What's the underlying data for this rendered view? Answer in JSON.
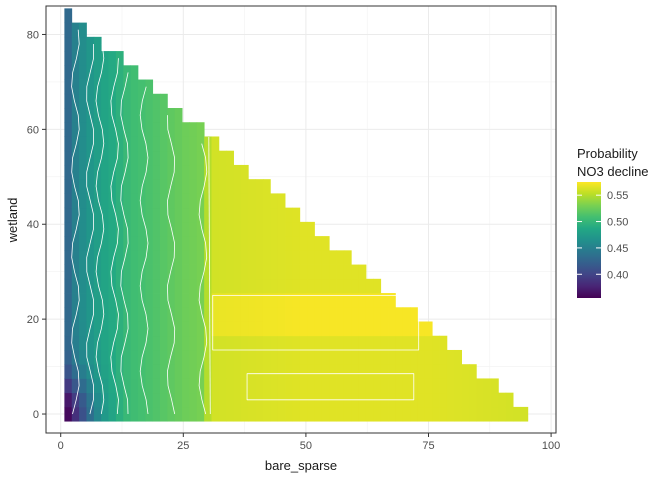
{
  "chart_data": {
    "type": "heatmap",
    "title": "",
    "xlabel": "bare_sparse",
    "ylabel": "wetland",
    "xlim": [
      -3,
      101
    ],
    "ylim": [
      -4,
      86
    ],
    "x_ticks": [
      0,
      25,
      50,
      75,
      100
    ],
    "y_ticks": [
      0,
      20,
      40,
      60,
      80
    ],
    "x_tick_labels": [
      "0",
      "25",
      "50",
      "75",
      "100"
    ],
    "y_tick_labels": [
      "0",
      "20",
      "40",
      "60",
      "80"
    ],
    "grid": true,
    "cell_width": 1.5,
    "cell_height": 3,
    "x_min": 1.5,
    "x_max": 96,
    "wetland_max_at_bare_min": 84.5,
    "hypotenuse_slope": -0.9,
    "legend": {
      "title_line1": "Probability",
      "title_line2": "NO3 decline",
      "placement": "right",
      "range": [
        0.355,
        0.575
      ],
      "breaks": [
        0.4,
        0.45,
        0.5,
        0.55
      ],
      "break_labels": [
        "0.40",
        "0.45",
        "0.50",
        "0.55"
      ]
    },
    "colormap": "viridis",
    "probability_by_bare_sparse": [
      {
        "x": 1.5,
        "p": 0.43
      },
      {
        "x": 3,
        "p": 0.45
      },
      {
        "x": 5,
        "p": 0.465
      },
      {
        "x": 8,
        "p": 0.48
      },
      {
        "x": 11,
        "p": 0.49
      },
      {
        "x": 14,
        "p": 0.505
      },
      {
        "x": 17,
        "p": 0.51
      },
      {
        "x": 20,
        "p": 0.515
      },
      {
        "x": 25,
        "p": 0.525
      },
      {
        "x": 29,
        "p": 0.53
      },
      {
        "x": 30.5,
        "p": 0.56
      },
      {
        "x": 50,
        "p": 0.565
      },
      {
        "x": 75,
        "p": 0.565
      },
      {
        "x": 96,
        "p": 0.56
      }
    ],
    "low_corner_minimum": {
      "x": 1.5,
      "y": 0,
      "p": 0.36
    },
    "high_band": {
      "y_from": 18,
      "y_to": 26,
      "p_offset": 0.008
    }
  }
}
